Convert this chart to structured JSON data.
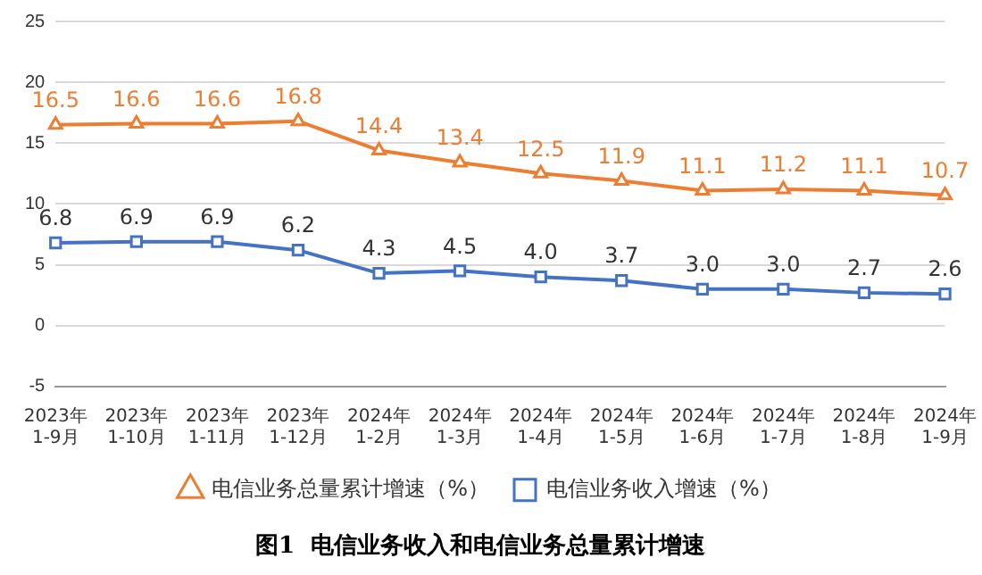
{
  "chart_data": {
    "type": "line",
    "title": "图1  电信业务收入和电信业务总量累计增速",
    "categories": [
      "2023年\n1-9月",
      "2023年\n1-10月",
      "2023年\n1-11月",
      "2023年\n1-12月",
      "2024年\n1-2月",
      "2024年\n1-3月",
      "2024年\n1-4月",
      "2024年\n1-5月",
      "2024年\n1-6月",
      "2024年\n1-7月",
      "2024年\n1-8月",
      "2024年\n1-9月"
    ],
    "series": [
      {
        "name": "电信业务总量累计增速（%）",
        "color": "#ed7d31",
        "marker": "triangle",
        "values": [
          16.5,
          16.6,
          16.6,
          16.8,
          14.4,
          13.4,
          12.5,
          11.9,
          11.1,
          11.2,
          11.1,
          10.7
        ],
        "value_labels": [
          "16.5",
          "16.6",
          "16.6",
          "16.8",
          "14.4",
          "13.4",
          "12.5",
          "11.9",
          "11.1",
          "11.2",
          "11.1",
          "10.7"
        ]
      },
      {
        "name": "电信业务收入增速（%）",
        "color": "#4472c4",
        "marker": "square",
        "values": [
          6.8,
          6.9,
          6.9,
          6.2,
          4.3,
          4.5,
          4.0,
          3.7,
          3.0,
          3.0,
          2.7,
          2.6
        ],
        "value_labels": [
          "6.8",
          "6.9",
          "6.9",
          "6.2",
          "4.3",
          "4.5",
          "4.0",
          "3.7",
          "3.0",
          "3.0",
          "2.7",
          "2.6"
        ]
      }
    ],
    "ylim": [
      -5,
      25
    ],
    "yticks": [
      -5,
      0,
      5,
      10,
      15,
      20,
      25
    ],
    "grid": "y",
    "legend": "bottom",
    "line_style": "solid"
  }
}
